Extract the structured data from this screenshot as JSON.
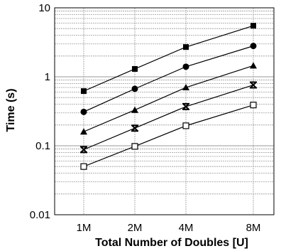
{
  "chart_data": {
    "type": "line",
    "title": "",
    "xlabel": "Total Number of Doubles [U]",
    "ylabel": "Time (s)",
    "x": [
      "1M",
      "2M",
      "4M",
      "8M"
    ],
    "xscale": "log2",
    "yscale": "log",
    "ylim": [
      0.01,
      10
    ],
    "yticks": [
      {
        "value": 10,
        "label": "10"
      },
      {
        "value": 1,
        "label": "1"
      },
      {
        "value": 0.1,
        "label": "0.1"
      },
      {
        "value": 0.01,
        "label": "0.01"
      }
    ],
    "grid": true,
    "legend": "none",
    "series": [
      {
        "marker": "filled-square",
        "values": [
          0.62,
          1.3,
          2.7,
          5.5
        ]
      },
      {
        "marker": "filled-circle",
        "values": [
          0.31,
          0.67,
          1.4,
          2.8
        ]
      },
      {
        "marker": "filled-triangle",
        "values": [
          0.16,
          0.33,
          0.7,
          1.45
        ]
      },
      {
        "marker": "x-mark",
        "values": [
          0.088,
          0.18,
          0.37,
          0.76
        ]
      },
      {
        "marker": "open-square",
        "values": [
          0.05,
          0.098,
          0.195,
          0.39
        ]
      }
    ],
    "colors": {
      "line": "#000000",
      "grid": "#9a9a9a",
      "frame": "#000000"
    }
  }
}
